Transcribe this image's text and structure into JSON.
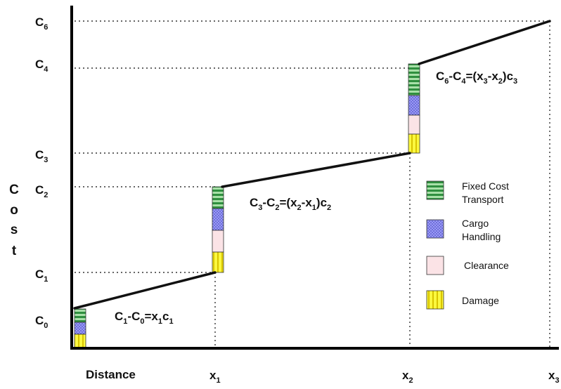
{
  "y_axis": {
    "title_letters": [
      "C",
      "o",
      "s",
      "t"
    ],
    "ticks": [
      {
        "base": "C",
        "sub": "6"
      },
      {
        "base": "C",
        "sub": "4"
      },
      {
        "base": "C",
        "sub": "3"
      },
      {
        "base": "C",
        "sub": "2"
      },
      {
        "base": "C",
        "sub": "1"
      },
      {
        "base": "C",
        "sub": "0"
      }
    ]
  },
  "x_axis": {
    "title": "Distance",
    "ticks": [
      {
        "base": "x",
        "sub": "1"
      },
      {
        "base": "x",
        "sub": "2"
      },
      {
        "base": "x",
        "sub": "3"
      }
    ]
  },
  "equations": [
    {
      "parts": [
        [
          "C",
          "n"
        ],
        [
          "1",
          "s"
        ],
        [
          "-C",
          "n"
        ],
        [
          "0",
          "s"
        ],
        [
          "=x",
          "n"
        ],
        [
          "1",
          "s"
        ],
        [
          "c",
          "n"
        ],
        [
          "1",
          "s"
        ]
      ]
    },
    {
      "parts": [
        [
          "C",
          "n"
        ],
        [
          "3",
          "s"
        ],
        [
          "-C",
          "n"
        ],
        [
          "2",
          "s"
        ],
        [
          "=(x",
          "n"
        ],
        [
          "2",
          "s"
        ],
        [
          "-x",
          "n"
        ],
        [
          "1",
          "s"
        ],
        [
          ")c",
          "n"
        ],
        [
          "2",
          "s"
        ]
      ]
    },
    {
      "parts": [
        [
          "C",
          "n"
        ],
        [
          "6",
          "s"
        ],
        [
          "-C",
          "n"
        ],
        [
          "4",
          "s"
        ],
        [
          "=(x",
          "n"
        ],
        [
          "3",
          "s"
        ],
        [
          "-x",
          "n"
        ],
        [
          "2",
          "s"
        ],
        [
          ")c",
          "n"
        ],
        [
          "3",
          "s"
        ]
      ]
    }
  ],
  "legend": [
    {
      "lines": [
        "Fixed Cost",
        "Transport"
      ],
      "color": "#3e9e4e",
      "pattern": "stripes-h"
    },
    {
      "lines": [
        "Cargo",
        "Handling"
      ],
      "color": "#8c8cf0",
      "pattern": "dots"
    },
    {
      "lines": [
        "Clearance"
      ],
      "color": "#fbe3e6",
      "pattern": "plain"
    },
    {
      "lines": [
        "Damage"
      ],
      "color": "#f6f23a",
      "pattern": "stripes-v"
    }
  ]
}
